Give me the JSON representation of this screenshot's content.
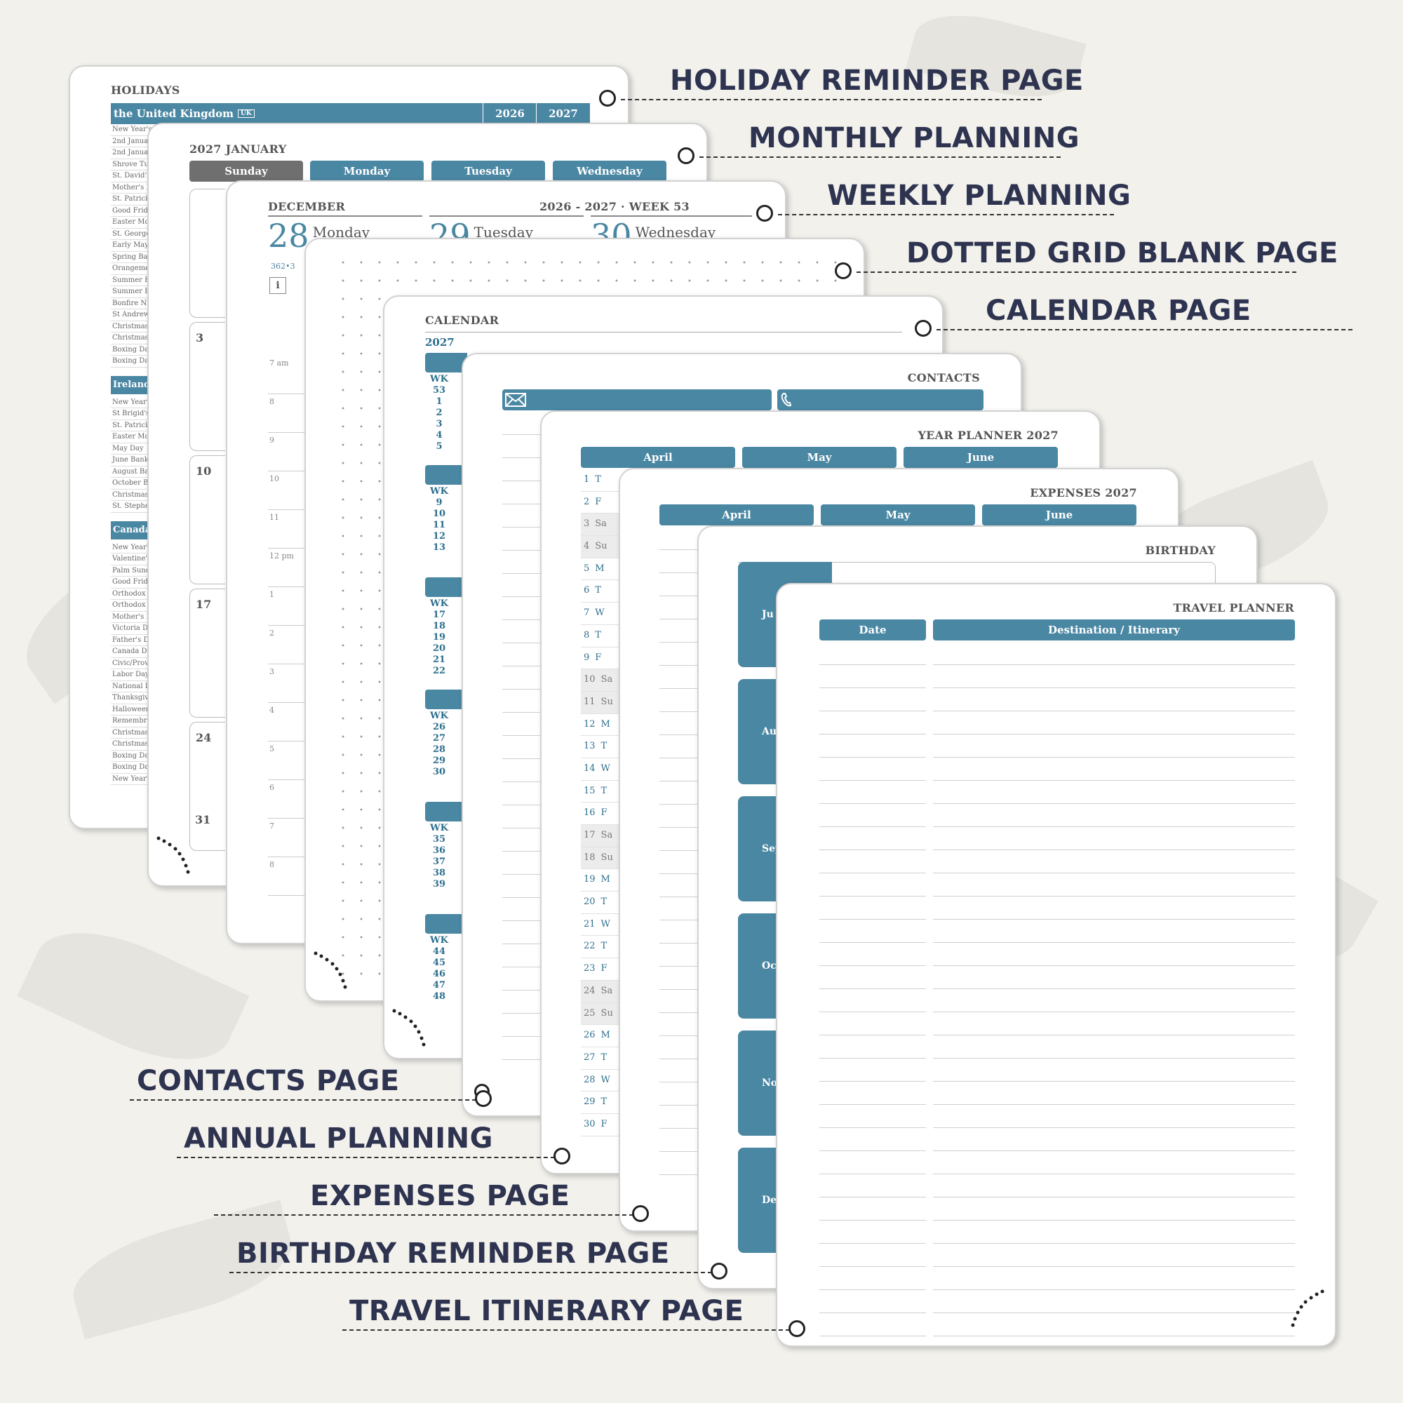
{
  "captions": [
    {
      "text": "HOLIDAY REMINDER PAGE"
    },
    {
      "text": "MONTHLY PLANNING"
    },
    {
      "text": "WEEKLY PLANNING"
    },
    {
      "text": "DOTTED GRID BLANK PAGE"
    },
    {
      "text": "CALENDAR PAGE"
    },
    {
      "text": "CONTACTS PAGE"
    },
    {
      "text": "ANNUAL PLANNING"
    },
    {
      "text": "EXPENSES PAGE"
    },
    {
      "text": "BIRTHDAY REMINDER PAGE"
    },
    {
      "text": "TRAVEL ITINERARY PAGE"
    }
  ],
  "holidays": {
    "title": "HOLIDAYS",
    "country": "the United Kingdom",
    "country_code": "UK",
    "years": [
      "2026",
      "2027"
    ],
    "uk_rows": [
      "New Year's D",
      "2nd Januar",
      "2nd Januar",
      "Shrove Tue",
      "St. David's",
      "Mother's D",
      "St. Patrick'",
      "Good Frida",
      "Easter Mon",
      "St. George'",
      "Early May I",
      "Spring Ban",
      "Orangemen",
      "Summer Ba",
      "Summer Ba",
      "Bonfire Nig",
      "St Andrew'",
      "Christmas",
      "Christmas",
      "Boxing Day",
      "Boxing Day"
    ],
    "ireland": "Ireland",
    "ireland_rows": [
      "New Year's",
      "St Brigid's",
      "St. Patrick's",
      "Easter Mon",
      "May Day",
      "June Bank",
      "August Ban",
      "October Ba",
      "Christmas",
      "St. Stephe"
    ],
    "canada": "Canada",
    "canada_rows": [
      "New Year's",
      "Valentine's",
      "Palm Sunda",
      "Good Frida",
      "Orthodox E",
      "Orthodox E",
      "Mother's D",
      "Victoria Da",
      "Father's Da",
      "Canada Day",
      "Civic/Provi",
      "Labor Day",
      "National D",
      "Thanksgivi",
      "Halloween",
      "Remembra",
      "Christmas",
      "Christmas",
      "Boxing Day",
      "Boxing Day",
      "New Year's"
    ]
  },
  "monthly": {
    "title": "2027 JANUARY",
    "days": [
      "Sunday",
      "Monday",
      "Tuesday",
      "Wednesday"
    ],
    "dates": [
      "3",
      "10",
      "17",
      "24",
      "31"
    ]
  },
  "weekly": {
    "month": "DECEMBER",
    "week": "2026 - 2027 · WEEK 53",
    "days": [
      {
        "num": "28",
        "name": "Monday"
      },
      {
        "num": "29",
        "name": "Tuesday"
      },
      {
        "num": "30",
        "name": "Wednesday"
      }
    ],
    "daycount": "362•3",
    "info_icon": "i",
    "times": [
      "7 am",
      "8",
      "9",
      "10",
      "11",
      "12 pm",
      "1",
      "2",
      "3",
      "4",
      "5",
      "6",
      "7",
      "8"
    ]
  },
  "calendar": {
    "title": "CALENDAR",
    "year": "2027",
    "wk_label": "WK",
    "blocks": [
      [
        "53",
        "1",
        "2",
        "3",
        "4",
        "5"
      ],
      [
        "",
        "9",
        "10",
        "11",
        "12",
        "13"
      ],
      [
        "17",
        "18",
        "19",
        "20",
        "21",
        "22"
      ],
      [
        "",
        "26",
        "27",
        "28",
        "29",
        "30"
      ],
      [
        "",
        "35",
        "36",
        "37",
        "38",
        "39"
      ],
      [
        "",
        "44",
        "45",
        "46",
        "47",
        "48"
      ]
    ]
  },
  "contacts": {
    "title": "CONTACTS",
    "email_icon": "envelope-icon",
    "phone_icon": "phone-icon"
  },
  "year_planner": {
    "title": "YEAR PLANNER 2027",
    "months": [
      "April",
      "May",
      "June"
    ],
    "rows": [
      [
        "1",
        "T"
      ],
      [
        "2",
        "F"
      ],
      [
        "3",
        "Sa"
      ],
      [
        "4",
        "Su"
      ],
      [
        "5",
        "M"
      ],
      [
        "6",
        "T"
      ],
      [
        "7",
        "W"
      ],
      [
        "8",
        "T"
      ],
      [
        "9",
        "F"
      ],
      [
        "10",
        "Sa"
      ],
      [
        "11",
        "Su"
      ],
      [
        "12",
        "M"
      ],
      [
        "13",
        "T"
      ],
      [
        "14",
        "W"
      ],
      [
        "15",
        "T"
      ],
      [
        "16",
        "F"
      ],
      [
        "17",
        "Sa"
      ],
      [
        "18",
        "Su"
      ],
      [
        "19",
        "M"
      ],
      [
        "20",
        "T"
      ],
      [
        "21",
        "W"
      ],
      [
        "22",
        "T"
      ],
      [
        "23",
        "F"
      ],
      [
        "24",
        "Sa"
      ],
      [
        "25",
        "Su"
      ],
      [
        "26",
        "M"
      ],
      [
        "27",
        "T"
      ],
      [
        "28",
        "W"
      ],
      [
        "29",
        "T"
      ],
      [
        "30",
        "F"
      ]
    ]
  },
  "expenses": {
    "title": "EXPENSES 2027",
    "months": [
      "April",
      "May",
      "June"
    ]
  },
  "birthday": {
    "title": "BIRTHDAY",
    "months": [
      "Ju",
      "Aug",
      "Septe",
      "Octo",
      "Nove",
      "Dece"
    ]
  },
  "travel": {
    "title": "TRAVEL PLANNER",
    "col_date": "Date",
    "col_dest": "Destination / Itinerary"
  },
  "colors": {
    "accent": "#4a87a3",
    "caption": "#2e3350",
    "background": "#f2f1ec"
  }
}
